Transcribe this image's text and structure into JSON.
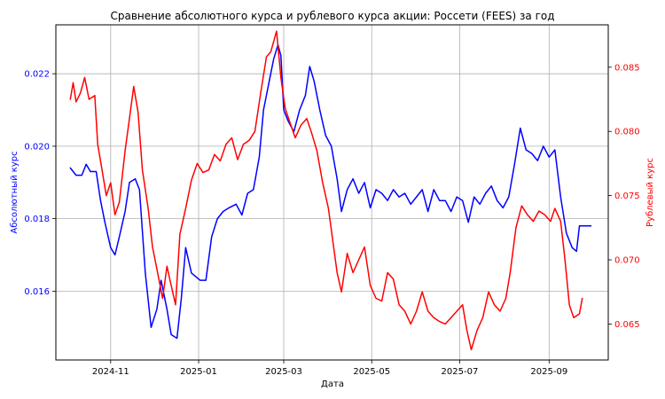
{
  "chart_data": {
    "type": "line",
    "title": "Сравнение абсолютного курса и рублевого курса акции: Россети (FEES) за год",
    "xlabel": "Дата",
    "ylabel_left": "Абсолютный курс",
    "ylabel_right": "Рублевый курс",
    "x_ticks": [
      "2024-11",
      "2025-01",
      "2025-03",
      "2025-05",
      "2025-07",
      "2025-09"
    ],
    "x_tick_dates": [
      "2024-11-01",
      "2025-01-01",
      "2025-03-01",
      "2025-05-01",
      "2025-07-01",
      "2025-09-01"
    ],
    "xlim": [
      "2024-09-24",
      "2025-10-12"
    ],
    "y_left_ticks": [
      "0.016",
      "0.018",
      "0.020",
      "0.022"
    ],
    "y_left_lim": [
      0.0141,
      0.02335
    ],
    "y_right_ticks": [
      "0.065",
      "0.070",
      "0.075",
      "0.080",
      "0.085"
    ],
    "y_right_lim": [
      0.0622,
      0.0883
    ],
    "grid": true,
    "colors": {
      "absolute": "#0000ff",
      "ruble": "#ff0000",
      "text": "#000000"
    },
    "series": [
      {
        "color": "#0000ff",
        "axis": "left",
        "points": [
          [
            "2024-10-04",
            0.0194
          ],
          [
            "2024-10-08",
            0.0192
          ],
          [
            "2024-10-12",
            0.0192
          ],
          [
            "2024-10-15",
            0.0195
          ],
          [
            "2024-10-18",
            0.0193
          ],
          [
            "2024-10-22",
            0.0193
          ],
          [
            "2024-10-25",
            0.0185
          ],
          [
            "2024-10-28",
            0.0179
          ],
          [
            "2024-11-01",
            0.0172
          ],
          [
            "2024-11-04",
            0.017
          ],
          [
            "2024-11-07",
            0.0175
          ],
          [
            "2024-11-11",
            0.0182
          ],
          [
            "2024-11-14",
            0.019
          ],
          [
            "2024-11-18",
            0.0191
          ],
          [
            "2024-11-21",
            0.0188
          ],
          [
            "2024-11-25",
            0.0165
          ],
          [
            "2024-11-29",
            0.015
          ],
          [
            "2024-12-03",
            0.0155
          ],
          [
            "2024-12-06",
            0.0163
          ],
          [
            "2024-12-10",
            0.0155
          ],
          [
            "2024-12-13",
            0.0148
          ],
          [
            "2024-12-17",
            0.0147
          ],
          [
            "2024-12-20",
            0.0158
          ],
          [
            "2024-12-23",
            0.0172
          ],
          [
            "2024-12-27",
            0.0165
          ],
          [
            "2025-01-02",
            0.0163
          ],
          [
            "2025-01-06",
            0.0163
          ],
          [
            "2025-01-10",
            0.0175
          ],
          [
            "2025-01-14",
            0.018
          ],
          [
            "2025-01-18",
            0.0182
          ],
          [
            "2025-01-22",
            0.0183
          ],
          [
            "2025-01-27",
            0.0184
          ],
          [
            "2025-01-31",
            0.0181
          ],
          [
            "2025-02-04",
            0.0187
          ],
          [
            "2025-02-08",
            0.0188
          ],
          [
            "2025-02-12",
            0.0197
          ],
          [
            "2025-02-15",
            0.021
          ],
          [
            "2025-02-19",
            0.0218
          ],
          [
            "2025-02-22",
            0.0224
          ],
          [
            "2025-02-25",
            0.0228
          ],
          [
            "2025-02-27",
            0.0225
          ],
          [
            "2025-03-01",
            0.021
          ],
          [
            "2025-03-04",
            0.0207
          ],
          [
            "2025-03-08",
            0.0204
          ],
          [
            "2025-03-12",
            0.021
          ],
          [
            "2025-03-16",
            0.0214
          ],
          [
            "2025-03-19",
            0.0222
          ],
          [
            "2025-03-22",
            0.0218
          ],
          [
            "2025-03-26",
            0.021
          ],
          [
            "2025-03-30",
            0.0203
          ],
          [
            "2025-04-03",
            0.02
          ],
          [
            "2025-04-07",
            0.0191
          ],
          [
            "2025-04-10",
            0.0182
          ],
          [
            "2025-04-14",
            0.0188
          ],
          [
            "2025-04-18",
            0.0191
          ],
          [
            "2025-04-22",
            0.0187
          ],
          [
            "2025-04-26",
            0.019
          ],
          [
            "2025-04-30",
            0.0183
          ],
          [
            "2025-05-04",
            0.0188
          ],
          [
            "2025-05-08",
            0.0187
          ],
          [
            "2025-05-12",
            0.0185
          ],
          [
            "2025-05-16",
            0.0188
          ],
          [
            "2025-05-20",
            0.0186
          ],
          [
            "2025-05-24",
            0.0187
          ],
          [
            "2025-05-28",
            0.0184
          ],
          [
            "2025-06-01",
            0.0186
          ],
          [
            "2025-06-05",
            0.0188
          ],
          [
            "2025-06-09",
            0.0182
          ],
          [
            "2025-06-13",
            0.0188
          ],
          [
            "2025-06-17",
            0.0185
          ],
          [
            "2025-06-21",
            0.0185
          ],
          [
            "2025-06-25",
            0.0182
          ],
          [
            "2025-06-29",
            0.0186
          ],
          [
            "2025-07-03",
            0.0185
          ],
          [
            "2025-07-07",
            0.0179
          ],
          [
            "2025-07-11",
            0.0186
          ],
          [
            "2025-07-15",
            0.0184
          ],
          [
            "2025-07-19",
            0.0187
          ],
          [
            "2025-07-23",
            0.0189
          ],
          [
            "2025-07-27",
            0.0185
          ],
          [
            "2025-07-31",
            0.0183
          ],
          [
            "2025-08-04",
            0.0186
          ],
          [
            "2025-08-08",
            0.0195
          ],
          [
            "2025-08-12",
            0.0205
          ],
          [
            "2025-08-16",
            0.0199
          ],
          [
            "2025-08-20",
            0.0198
          ],
          [
            "2025-08-24",
            0.0196
          ],
          [
            "2025-08-28",
            0.02
          ],
          [
            "2025-09-01",
            0.0197
          ],
          [
            "2025-09-05",
            0.0199
          ],
          [
            "2025-09-09",
            0.0186
          ],
          [
            "2025-09-13",
            0.0176
          ],
          [
            "2025-09-17",
            0.0172
          ],
          [
            "2025-09-20",
            0.0171
          ],
          [
            "2025-09-22",
            0.0178
          ],
          [
            "2025-09-26",
            0.0178
          ],
          [
            "2025-09-30",
            0.0178
          ]
        ]
      },
      {
        "color": "#ff0000",
        "axis": "right",
        "points": [
          [
            "2024-10-04",
            0.0825
          ],
          [
            "2024-10-06",
            0.0838
          ],
          [
            "2024-10-08",
            0.0823
          ],
          [
            "2024-10-11",
            0.083
          ],
          [
            "2024-10-14",
            0.0842
          ],
          [
            "2024-10-17",
            0.0825
          ],
          [
            "2024-10-21",
            0.0828
          ],
          [
            "2024-10-23",
            0.079
          ],
          [
            "2024-10-26",
            0.077
          ],
          [
            "2024-10-29",
            0.075
          ],
          [
            "2024-11-01",
            0.076
          ],
          [
            "2024-11-04",
            0.0735
          ],
          [
            "2024-11-07",
            0.0745
          ],
          [
            "2024-11-11",
            0.0785
          ],
          [
            "2024-11-14",
            0.081
          ],
          [
            "2024-11-17",
            0.0835
          ],
          [
            "2024-11-20",
            0.0815
          ],
          [
            "2024-11-23",
            0.077
          ],
          [
            "2024-11-27",
            0.074
          ],
          [
            "2024-11-30",
            0.071
          ],
          [
            "2024-12-03",
            0.0693
          ],
          [
            "2024-12-07",
            0.067
          ],
          [
            "2024-12-10",
            0.0695
          ],
          [
            "2024-12-13",
            0.068
          ],
          [
            "2024-12-16",
            0.0665
          ],
          [
            "2024-12-19",
            0.072
          ],
          [
            "2024-12-23",
            0.074
          ],
          [
            "2024-12-27",
            0.0762
          ],
          [
            "2024-12-31",
            0.0775
          ],
          [
            "2025-01-04",
            0.0768
          ],
          [
            "2025-01-08",
            0.077
          ],
          [
            "2025-01-12",
            0.0782
          ],
          [
            "2025-01-16",
            0.0777
          ],
          [
            "2025-01-20",
            0.079
          ],
          [
            "2025-01-24",
            0.0795
          ],
          [
            "2025-01-28",
            0.0778
          ],
          [
            "2025-02-01",
            0.079
          ],
          [
            "2025-02-05",
            0.0793
          ],
          [
            "2025-02-09",
            0.08
          ],
          [
            "2025-02-13",
            0.083
          ],
          [
            "2025-02-17",
            0.0858
          ],
          [
            "2025-02-20",
            0.0862
          ],
          [
            "2025-02-24",
            0.0878
          ],
          [
            "2025-02-27",
            0.0842
          ],
          [
            "2025-03-02",
            0.0818
          ],
          [
            "2025-03-05",
            0.0808
          ],
          [
            "2025-03-09",
            0.0795
          ],
          [
            "2025-03-13",
            0.0805
          ],
          [
            "2025-03-17",
            0.081
          ],
          [
            "2025-03-20",
            0.08
          ],
          [
            "2025-03-24",
            0.0785
          ],
          [
            "2025-03-28",
            0.076
          ],
          [
            "2025-04-01",
            0.074
          ],
          [
            "2025-04-04",
            0.0715
          ],
          [
            "2025-04-07",
            0.069
          ],
          [
            "2025-04-10",
            0.0675
          ],
          [
            "2025-04-14",
            0.0705
          ],
          [
            "2025-04-18",
            0.069
          ],
          [
            "2025-04-22",
            0.07
          ],
          [
            "2025-04-26",
            0.071
          ],
          [
            "2025-04-30",
            0.068
          ],
          [
            "2025-05-04",
            0.067
          ],
          [
            "2025-05-08",
            0.0668
          ],
          [
            "2025-05-12",
            0.069
          ],
          [
            "2025-05-16",
            0.0685
          ],
          [
            "2025-05-20",
            0.0665
          ],
          [
            "2025-05-24",
            0.066
          ],
          [
            "2025-05-28",
            0.065
          ],
          [
            "2025-06-01",
            0.066
          ],
          [
            "2025-06-05",
            0.0675
          ],
          [
            "2025-06-09",
            0.066
          ],
          [
            "2025-06-13",
            0.0655
          ],
          [
            "2025-06-17",
            0.0652
          ],
          [
            "2025-06-21",
            0.065
          ],
          [
            "2025-06-25",
            0.0655
          ],
          [
            "2025-06-29",
            0.066
          ],
          [
            "2025-07-03",
            0.0665
          ],
          [
            "2025-07-06",
            0.0645
          ],
          [
            "2025-07-09",
            0.063
          ],
          [
            "2025-07-13",
            0.0645
          ],
          [
            "2025-07-17",
            0.0655
          ],
          [
            "2025-07-21",
            0.0675
          ],
          [
            "2025-07-25",
            0.0665
          ],
          [
            "2025-07-29",
            0.066
          ],
          [
            "2025-08-02",
            0.067
          ],
          [
            "2025-08-05",
            0.069
          ],
          [
            "2025-08-09",
            0.0725
          ],
          [
            "2025-08-13",
            0.0742
          ],
          [
            "2025-08-17",
            0.0735
          ],
          [
            "2025-08-21",
            0.073
          ],
          [
            "2025-08-25",
            0.0738
          ],
          [
            "2025-08-29",
            0.0735
          ],
          [
            "2025-09-02",
            0.073
          ],
          [
            "2025-09-05",
            0.074
          ],
          [
            "2025-09-09",
            0.073
          ],
          [
            "2025-09-12",
            0.07
          ],
          [
            "2025-09-15",
            0.0665
          ],
          [
            "2025-09-18",
            0.0655
          ],
          [
            "2025-09-22",
            0.0658
          ],
          [
            "2025-09-24",
            0.067
          ]
        ]
      }
    ]
  }
}
